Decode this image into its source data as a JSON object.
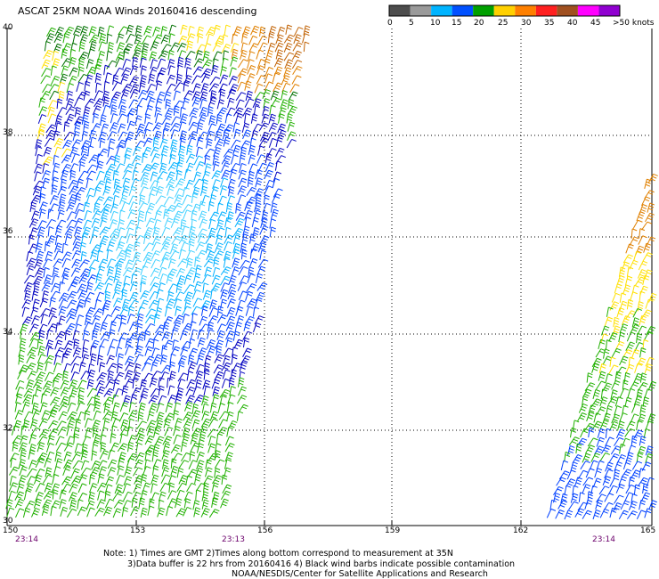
{
  "title": "ASCAT 25KM NOAA Winds 20160416 descending",
  "legend": {
    "labels": [
      "0",
      "5",
      "10",
      "15",
      "20",
      "25",
      "30",
      "35",
      "40",
      "45",
      ">50 knots"
    ],
    "colors": [
      "#4d4d4d",
      "#9a9a9a",
      "#00b4ff",
      "#0050ff",
      "#00a000",
      "#ffd000",
      "#ff8000",
      "#ff2020",
      "#a05020",
      "#ff00ff",
      "#9000d0"
    ]
  },
  "axes": {
    "lat_labels": [
      "40",
      "38",
      "36",
      "34",
      "32",
      "30"
    ],
    "lon_labels": [
      "150",
      "153",
      "156",
      "159",
      "162",
      "165"
    ]
  },
  "pass_times": [
    "23:14",
    "23:13",
    "23:14"
  ],
  "notes": {
    "line1": "Note: 1) Times are GMT 2)Times along bottom correspond to measurement at 35N",
    "line2": "3)Data buffer is 22 hrs from 20160416 4) Black wind barbs indicate possible contamination",
    "line3": "NOAA/NESDIS/Center for Satellite Applications and Research"
  },
  "colors": {
    "dark_blue": "#0000c0",
    "blue": "#0040ff",
    "light_blue": "#00b0ff",
    "cyan": "#40d0ff",
    "green": "#20b000",
    "dark_green": "#007000",
    "yellow": "#ffe000",
    "orange": "#e08000",
    "brown": "#c06000"
  }
}
